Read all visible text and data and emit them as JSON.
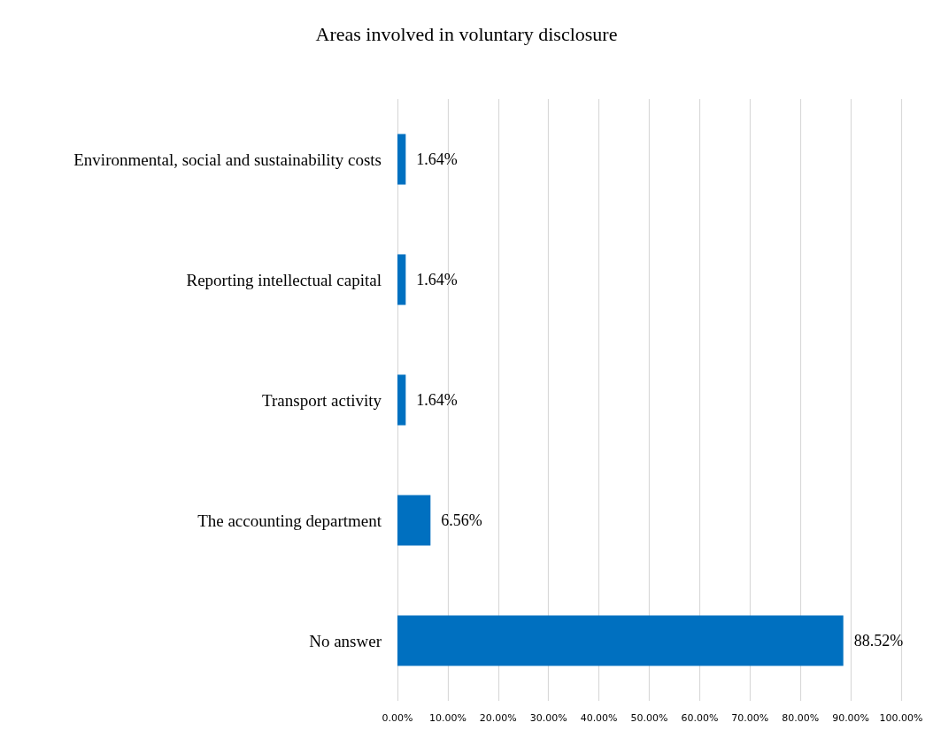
{
  "chart_data": {
    "type": "bar",
    "orientation": "horizontal",
    "title": "Areas involved in voluntary disclosure",
    "categories": [
      "Environmental, social and sustainability costs",
      "Reporting intellectual capital",
      "Transport activity",
      "The accounting department",
      "No answer"
    ],
    "values": [
      1.64,
      1.64,
      1.64,
      6.56,
      88.52
    ],
    "value_labels": [
      "1.64%",
      "1.64%",
      "1.64%",
      "6.56%",
      "88.52%"
    ],
    "color": "#0070c0",
    "xlim": [
      0,
      100
    ],
    "xticks": [
      {
        "value": 0,
        "label": "0.00%"
      },
      {
        "value": 10,
        "label": "10.00%"
      },
      {
        "value": 20,
        "label": "20.00%"
      },
      {
        "value": 30,
        "label": "30.00%"
      },
      {
        "value": 40,
        "label": "40.00%"
      },
      {
        "value": 50,
        "label": "50.00%"
      },
      {
        "value": 60,
        "label": "60.00%"
      },
      {
        "value": 70,
        "label": "70.00%"
      },
      {
        "value": 80,
        "label": "80.00%"
      },
      {
        "value": 90,
        "label": "90.00%"
      },
      {
        "value": 100,
        "label": "100.00%"
      }
    ],
    "grid": "x"
  }
}
